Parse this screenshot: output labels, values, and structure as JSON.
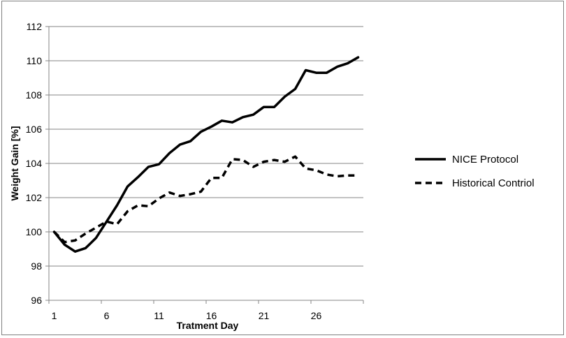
{
  "chart_data": {
    "type": "line",
    "xlabel": "Tratment Day",
    "ylabel": "Weight Gain [%]",
    "xlim": [
      1,
      30
    ],
    "ylim": [
      96,
      112
    ],
    "x_ticks": [
      1,
      6,
      11,
      16,
      21,
      26
    ],
    "y_ticks": [
      96,
      98,
      100,
      102,
      104,
      106,
      108,
      110,
      112
    ],
    "grid": "horizontal major gridlines",
    "legend_position": "right",
    "x": [
      1,
      2,
      3,
      4,
      5,
      6,
      7,
      8,
      9,
      10,
      11,
      12,
      13,
      14,
      15,
      16,
      17,
      18,
      19,
      20,
      21,
      22,
      23,
      24,
      25,
      26,
      27,
      28,
      29,
      30
    ],
    "series": [
      {
        "name": "NICE Protocol",
        "style": "solid",
        "color": "#000000",
        "values": [
          100.0,
          99.25,
          98.85,
          99.05,
          99.65,
          100.6,
          101.55,
          102.65,
          103.2,
          103.8,
          103.95,
          104.6,
          105.1,
          105.3,
          105.85,
          106.15,
          106.5,
          106.4,
          106.7,
          106.85,
          107.3,
          107.3,
          107.9,
          108.35,
          109.45,
          109.3,
          109.3,
          109.65,
          109.85,
          110.2
        ]
      },
      {
        "name": "Historical Contriol",
        "style": "dashed",
        "color": "#000000",
        "values": [
          100.0,
          99.4,
          99.5,
          99.9,
          100.25,
          100.6,
          100.45,
          101.2,
          101.55,
          101.5,
          101.95,
          102.3,
          102.1,
          102.2,
          102.35,
          103.15,
          103.15,
          104.25,
          104.2,
          103.8,
          104.1,
          104.2,
          104.1,
          104.4,
          103.7,
          103.6,
          103.35,
          103.25,
          103.3,
          103.3
        ]
      }
    ]
  }
}
